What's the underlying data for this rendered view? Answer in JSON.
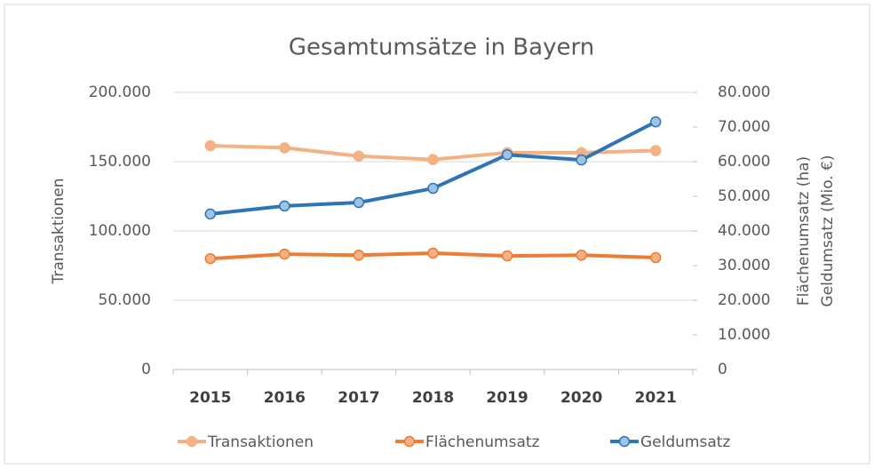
{
  "chart_data": {
    "type": "line",
    "title": "Gesamtumsätze in Bayern",
    "categories": [
      "2015",
      "2016",
      "2017",
      "2018",
      "2019",
      "2020",
      "2021"
    ],
    "series": [
      {
        "name": "Transaktionen",
        "color": "#f4b183",
        "values": [
          161500,
          160000,
          154000,
          151500,
          156500,
          156500,
          158000
        ]
      },
      {
        "name": "Flächenumsatz",
        "color": "#ed7d31",
        "axis": "y2",
        "values": [
          32000,
          33300,
          33000,
          33600,
          32800,
          33000,
          32300
        ]
      },
      {
        "name": "Geldumsatz",
        "color": "#2e75b6",
        "axis": "y2",
        "values": [
          44900,
          47200,
          48200,
          52300,
          62000,
          60500,
          71500
        ]
      }
    ],
    "ylabel": "Transaktionen",
    "y2label": [
      "Flächenumsatz (ha)",
      "Geldumsatz (Mio. €)"
    ],
    "ylim": [
      0,
      200000
    ],
    "yticks": [
      0,
      {
        "value": 50000,
        "label": "50.000"
      },
      {
        "value": 100000,
        "label": "100.000"
      },
      {
        "value": 150000,
        "label": "150.000"
      },
      {
        "value": 200000,
        "label": "200.000"
      }
    ],
    "y2lim": [
      0,
      80000
    ],
    "y2ticks": [
      0,
      {
        "value": 10000,
        "label": "10.000"
      },
      {
        "value": 20000,
        "label": "20.000"
      },
      {
        "value": 30000,
        "label": "30.000"
      },
      {
        "value": 40000,
        "label": "40.000"
      },
      {
        "value": 50000,
        "label": "50.000"
      },
      {
        "value": 60000,
        "label": "60.000"
      },
      {
        "value": 70000,
        "label": "70.000"
      },
      {
        "value": 80000,
        "label": "80.000"
      }
    ],
    "grid": true,
    "legend": "bottom"
  }
}
